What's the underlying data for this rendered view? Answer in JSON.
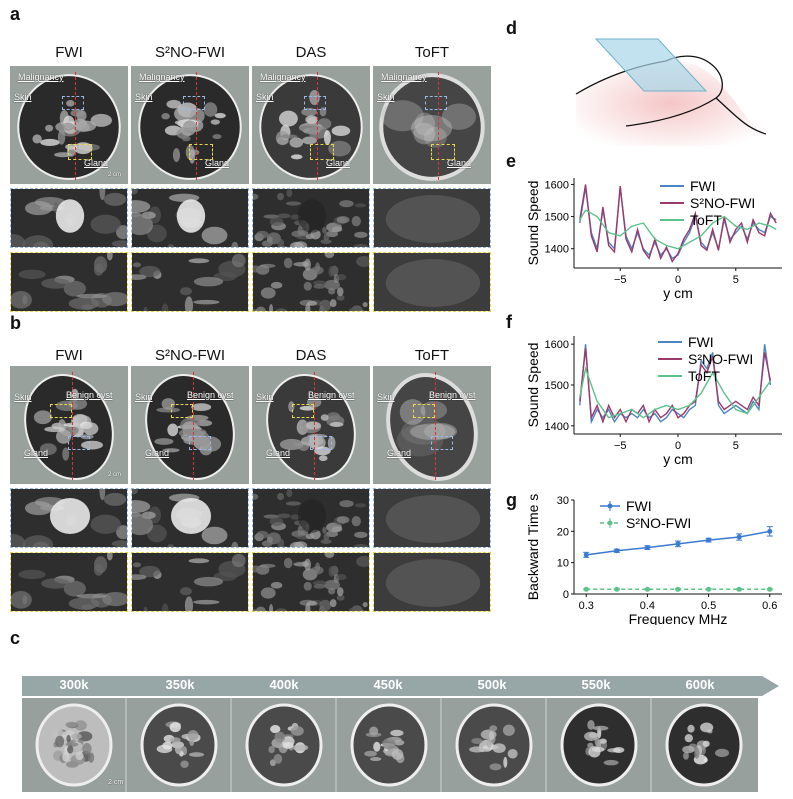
{
  "panels": {
    "a": "a",
    "b": "b",
    "c": "c",
    "d": "d",
    "e": "e",
    "f": "f",
    "g": "g"
  },
  "columns": [
    "FWI",
    "S²NO-FWI",
    "DAS",
    "ToFT"
  ],
  "panel_a": {
    "labels": {
      "malignancy": "Malignancy",
      "skin": "Skin",
      "gland": "Gland"
    },
    "scalebar": "2 cm"
  },
  "panel_b": {
    "labels": {
      "skin": "Skin",
      "benign": "Benign cyst",
      "gland": "Gland"
    },
    "scalebar": "2 cm"
  },
  "panel_c": {
    "frequencies": [
      "300k",
      "350k",
      "400k",
      "450k",
      "500k",
      "550k",
      "600k"
    ],
    "scalebar": "2 cm",
    "arrow_color": "#97a6a6"
  },
  "colors": {
    "fwi": "#4a86c5",
    "s2no": "#9b3a6a",
    "toft": "#5cc28a",
    "g_fwi": "#3a7ad0",
    "g_s2no": "#5cc28a"
  },
  "chart_data": [
    {
      "id": "e",
      "type": "line",
      "xlabel": "y cm",
      "ylabel": "Sound Speed",
      "xlim": [
        -9,
        9
      ],
      "ylim": [
        1340,
        1620
      ],
      "xticks": [
        -5,
        0,
        5
      ],
      "yticks": [
        1400,
        1500,
        1600
      ],
      "series": [
        {
          "name": "FWI",
          "x": [
            -8.5,
            -8,
            -7.5,
            -7,
            -6.5,
            -6,
            -5.5,
            -5,
            -4.5,
            -4,
            -3.5,
            -3,
            -2.5,
            -2,
            -1.5,
            -1,
            -0.5,
            0,
            0.5,
            1,
            1.5,
            2,
            2.5,
            3,
            3.5,
            4,
            4.5,
            5,
            5.5,
            6,
            6.5,
            7,
            7.5,
            8,
            8.5
          ],
          "values": [
            1480,
            1590,
            1450,
            1400,
            1520,
            1420,
            1400,
            1590,
            1440,
            1400,
            1450,
            1400,
            1380,
            1420,
            1380,
            1400,
            1370,
            1380,
            1420,
            1450,
            1500,
            1420,
            1400,
            1450,
            1400,
            1490,
            1430,
            1450,
            1470,
            1430,
            1480,
            1460,
            1450,
            1500,
            1490
          ]
        },
        {
          "name": "S²NO-FWI",
          "x": [
            -8.5,
            -8,
            -7.5,
            -7,
            -6.5,
            -6,
            -5.5,
            -5,
            -4.5,
            -4,
            -3.5,
            -3,
            -2.5,
            -2,
            -1.5,
            -1,
            -0.5,
            0,
            0.5,
            1,
            1.5,
            2,
            2.5,
            3,
            3.5,
            4,
            4.5,
            5,
            5.5,
            6,
            6.5,
            7,
            7.5,
            8,
            8.5
          ],
          "values": [
            1490,
            1600,
            1440,
            1390,
            1530,
            1410,
            1390,
            1595,
            1430,
            1390,
            1460,
            1395,
            1370,
            1430,
            1370,
            1405,
            1360,
            1385,
            1430,
            1460,
            1510,
            1410,
            1395,
            1460,
            1395,
            1500,
            1420,
            1460,
            1480,
            1420,
            1490,
            1450,
            1440,
            1510,
            1480
          ]
        },
        {
          "name": "ToFT",
          "x": [
            -8.5,
            -8,
            -7,
            -6,
            -5,
            -4,
            -3,
            -2,
            -1,
            0,
            1,
            2,
            3,
            4,
            5,
            6,
            7,
            8,
            8.5
          ],
          "values": [
            1490,
            1520,
            1500,
            1450,
            1440,
            1470,
            1480,
            1430,
            1410,
            1400,
            1420,
            1440,
            1480,
            1500,
            1470,
            1460,
            1480,
            1470,
            1460
          ]
        }
      ]
    },
    {
      "id": "f",
      "type": "line",
      "xlabel": "y cm",
      "ylabel": "Sound Speed",
      "xlim": [
        -9,
        9
      ],
      "ylim": [
        1380,
        1620
      ],
      "xticks": [
        -5,
        0,
        5
      ],
      "yticks": [
        1400,
        1500,
        1600
      ],
      "series": [
        {
          "name": "FWI",
          "x": [
            -8.5,
            -8,
            -7.5,
            -7,
            -6.5,
            -6,
            -5.5,
            -5,
            -4.5,
            -4,
            -3.5,
            -3,
            -2.5,
            -2,
            -1.5,
            -1,
            -0.5,
            0,
            0.5,
            1,
            1.5,
            2,
            2.5,
            3,
            3.5,
            4,
            4.5,
            5,
            5.5,
            6,
            6.5,
            7,
            7.5,
            8
          ],
          "values": [
            1450,
            1600,
            1410,
            1440,
            1420,
            1440,
            1410,
            1430,
            1420,
            1430,
            1420,
            1440,
            1420,
            1430,
            1410,
            1420,
            1440,
            1430,
            1420,
            1440,
            1450,
            1560,
            1540,
            1580,
            1450,
            1430,
            1440,
            1450,
            1440,
            1430,
            1460,
            1440,
            1600,
            1500
          ]
        },
        {
          "name": "S²NO-FWI",
          "x": [
            -8.5,
            -8,
            -7.5,
            -7,
            -6.5,
            -6,
            -5.5,
            -5,
            -4.5,
            -4,
            -3.5,
            -3,
            -2.5,
            -2,
            -1.5,
            -1,
            -0.5,
            0,
            0.5,
            1,
            1.5,
            2,
            2.5,
            3,
            3.5,
            4,
            4.5,
            5,
            5.5,
            6,
            6.5,
            7,
            7.5,
            8
          ],
          "values": [
            1460,
            1590,
            1420,
            1450,
            1410,
            1450,
            1420,
            1440,
            1410,
            1440,
            1430,
            1450,
            1410,
            1440,
            1420,
            1430,
            1450,
            1420,
            1430,
            1450,
            1460,
            1550,
            1530,
            1570,
            1460,
            1440,
            1450,
            1460,
            1450,
            1440,
            1470,
            1450,
            1580,
            1510
          ]
        },
        {
          "name": "ToFT",
          "x": [
            -8.5,
            -8,
            -7,
            -6,
            -5,
            -4,
            -3,
            -2,
            -1,
            0,
            1,
            2,
            3,
            4,
            5,
            6,
            7,
            8
          ],
          "values": [
            1470,
            1540,
            1460,
            1420,
            1430,
            1440,
            1420,
            1440,
            1450,
            1440,
            1450,
            1480,
            1530,
            1480,
            1440,
            1430,
            1470,
            1510
          ]
        }
      ]
    },
    {
      "id": "g",
      "type": "line",
      "xlabel": "Frequency MHz",
      "ylabel": "Backward Time s",
      "xlim": [
        0.28,
        0.62
      ],
      "ylim": [
        0,
        30
      ],
      "xticks": [
        0.3,
        0.4,
        0.5,
        0.6
      ],
      "yticks": [
        0,
        10,
        20,
        30
      ],
      "xtick_labels": [
        "0.3",
        "0.4",
        "0.5",
        "0.6"
      ],
      "series": [
        {
          "name": "FWI",
          "x": [
            0.3,
            0.35,
            0.4,
            0.45,
            0.5,
            0.55,
            0.6
          ],
          "values": [
            12.5,
            13.8,
            14.8,
            16.0,
            17.2,
            18.2,
            20.0
          ],
          "err": [
            0.8,
            0.5,
            0.6,
            0.9,
            0.6,
            1.0,
            1.5
          ]
        },
        {
          "name": "S²NO-FWI",
          "x": [
            0.3,
            0.35,
            0.4,
            0.45,
            0.5,
            0.55,
            0.6
          ],
          "values": [
            1.5,
            1.5,
            1.5,
            1.5,
            1.5,
            1.5,
            1.5
          ],
          "err": [
            0.2,
            0.2,
            0.2,
            0.2,
            0.2,
            0.2,
            0.2
          ]
        }
      ]
    }
  ]
}
